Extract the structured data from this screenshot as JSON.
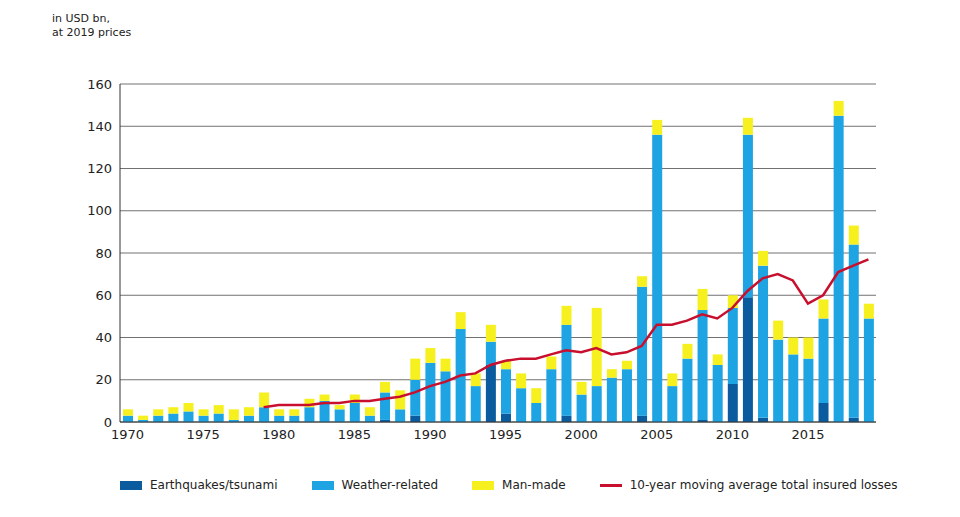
{
  "chart_data": {
    "type": "bar",
    "subtitle": "in USD bn,\nat 2019 prices",
    "stacked": true,
    "grid": true,
    "legend": "bottom",
    "x": [
      1970,
      1971,
      1972,
      1973,
      1974,
      1975,
      1976,
      1977,
      1978,
      1979,
      1980,
      1981,
      1982,
      1983,
      1984,
      1985,
      1986,
      1987,
      1988,
      1989,
      1990,
      1991,
      1992,
      1993,
      1994,
      1995,
      1996,
      1997,
      1998,
      1999,
      2000,
      2001,
      2002,
      2003,
      2004,
      2005,
      2006,
      2007,
      2008,
      2009,
      2010,
      2011,
      2012,
      2013,
      2014,
      2015,
      2016,
      2017,
      2018,
      2019
    ],
    "xlim": [
      1969.5,
      2019.5
    ],
    "xticks": [
      1970,
      1975,
      1980,
      1985,
      1990,
      1995,
      2000,
      2005,
      2010,
      2015
    ],
    "ylim": [
      0,
      160
    ],
    "yticks": [
      0,
      20,
      40,
      60,
      80,
      100,
      120,
      140,
      160
    ],
    "series": [
      {
        "name": "Earthquakes/tsunami",
        "color": "#0b5c9e",
        "type": "bar",
        "values": [
          0,
          0,
          0,
          0,
          0,
          0,
          0,
          0,
          0,
          0,
          0,
          0,
          0,
          0,
          0,
          0,
          0,
          1,
          0,
          3,
          0,
          0,
          0,
          0,
          27,
          4,
          0,
          0,
          0,
          3,
          0,
          0,
          0,
          0,
          3,
          0,
          0,
          0,
          1,
          0,
          18,
          59,
          2,
          0,
          0,
          0,
          9,
          0,
          2,
          0
        ]
      },
      {
        "name": "Weather-related",
        "color": "#1ea3e3",
        "type": "bar",
        "values": [
          3,
          1,
          3,
          4,
          5,
          3,
          4,
          1,
          3,
          7,
          3,
          3,
          7,
          10,
          6,
          9,
          3,
          13,
          6,
          17,
          28,
          24,
          44,
          17,
          11,
          21,
          16,
          9,
          25,
          43,
          13,
          17,
          21,
          25,
          61,
          136,
          17,
          30,
          52,
          27,
          36,
          77,
          72,
          39,
          32,
          30,
          40,
          145,
          82,
          49
        ]
      },
      {
        "name": "Man-made",
        "color": "#f6f01f",
        "type": "bar",
        "values": [
          3,
          2,
          3,
          3,
          4,
          3,
          4,
          5,
          4,
          7,
          3,
          3,
          4,
          3,
          2,
          4,
          4,
          5,
          9,
          10,
          7,
          6,
          8,
          6,
          8,
          4,
          7,
          7,
          6,
          9,
          6,
          37,
          4,
          4,
          5,
          7,
          6,
          7,
          10,
          5,
          6,
          8,
          7,
          9,
          8,
          10,
          9,
          7,
          9,
          7
        ]
      },
      {
        "name": "10-year moving average total insured losses",
        "color": "#c8102e",
        "type": "line",
        "values": [
          null,
          null,
          null,
          null,
          null,
          null,
          null,
          null,
          null,
          7,
          8,
          8,
          8,
          9,
          9,
          10,
          10,
          11,
          12,
          14,
          17,
          19,
          22,
          23,
          27,
          29,
          30,
          30,
          32,
          34,
          33,
          35,
          32,
          33,
          36,
          46,
          46,
          48,
          51,
          49,
          54,
          62,
          68,
          70,
          67,
          56,
          60,
          71,
          74,
          77
        ]
      }
    ]
  }
}
